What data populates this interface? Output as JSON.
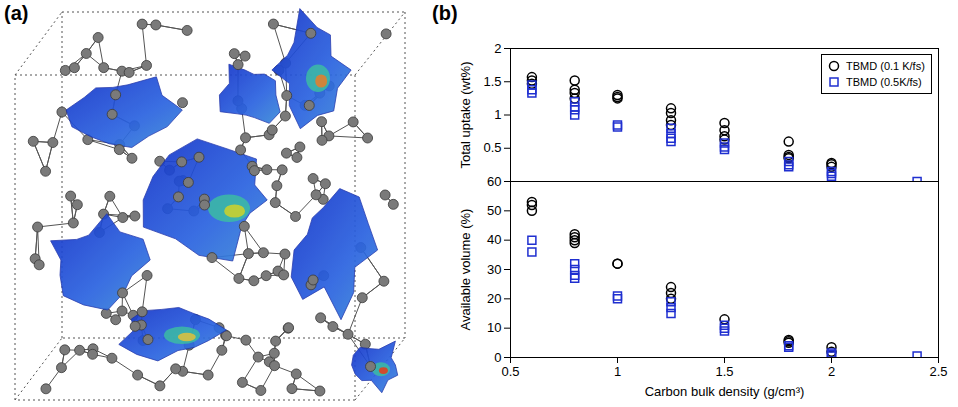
{
  "panel_labels": [
    "(a)",
    "(b)"
  ],
  "chart_data": [
    {
      "type": "scatter",
      "ylabel": "Total uptake (wt%)",
      "xlim": [
        0.5,
        2.5
      ],
      "ylim": [
        0,
        2
      ],
      "yticks": [
        0.5,
        1,
        1.5,
        2
      ],
      "tick_labels": "y",
      "legend": "top-right",
      "series": [
        {
          "name": "TBMD (0.1 K/fs)",
          "color": "#000000",
          "marker": "circle",
          "x": [
            0.6,
            0.6,
            0.6,
            0.8,
            0.8,
            0.8,
            0.8,
            1,
            1,
            1,
            1.25,
            1.25,
            1.25,
            1.25,
            1.5,
            1.5,
            1.5,
            1.5,
            1.8,
            1.8,
            1.8,
            1.8,
            2,
            2,
            2
          ],
          "values": [
            1.57,
            1.52,
            1.47,
            1.52,
            1.38,
            1.33,
            1.25,
            1.3,
            1.27,
            1.25,
            1.1,
            1.03,
            0.92,
            0.85,
            0.88,
            0.77,
            0.68,
            0.63,
            0.6,
            0.4,
            0.37,
            0.35,
            0.28,
            0.26,
            0.22
          ]
        },
        {
          "name": "TBMD (0.5K/fs)",
          "color": "#1f2fd0",
          "marker": "square",
          "x": [
            0.6,
            0.6,
            0.6,
            0.8,
            0.8,
            0.8,
            0.8,
            1,
            1,
            1.25,
            1.25,
            1.25,
            1.25,
            1.5,
            1.5,
            1.5,
            1.8,
            1.8,
            1.8,
            2,
            2,
            2,
            2.4
          ],
          "values": [
            1.45,
            1.38,
            1.33,
            1.2,
            1.12,
            1.08,
            1.0,
            0.85,
            0.82,
            0.8,
            0.72,
            0.65,
            0.6,
            0.58,
            0.52,
            0.48,
            0.3,
            0.25,
            0.22,
            0.15,
            0.12,
            0.08,
            0
          ]
        }
      ]
    },
    {
      "type": "scatter",
      "xlabel": "Carbon bulk density (g/cm³)",
      "ylabel": "Available volume (%)",
      "xlim": [
        0.5,
        2.5
      ],
      "xticks": [
        0.5,
        1,
        1.5,
        2,
        2.5
      ],
      "ylim": [
        0,
        60
      ],
      "yticks": [
        0,
        10,
        20,
        30,
        40,
        50,
        60
      ],
      "series": [
        {
          "name": "TBMD (0.1 K/fs)",
          "color": "#000000",
          "marker": "circle",
          "x": [
            0.6,
            0.6,
            0.6,
            0.8,
            0.8,
            0.8,
            0.8,
            1,
            1,
            1.25,
            1.25,
            1.25,
            1.5,
            1.8,
            1.8,
            1.8,
            2,
            2
          ],
          "values": [
            53,
            52,
            50,
            42,
            41,
            40,
            39,
            32,
            32,
            24,
            22,
            20,
            13,
            6,
            5.5,
            5,
            3.5,
            2
          ]
        },
        {
          "name": "TBMD (0.5K/fs)",
          "color": "#1f2fd0",
          "marker": "square",
          "x": [
            0.6,
            0.6,
            0.8,
            0.8,
            0.8,
            0.8,
            1,
            1,
            1.25,
            1.25,
            1.25,
            1.5,
            1.5,
            1.5,
            1.8,
            1.8,
            2,
            2,
            2,
            2.4
          ],
          "values": [
            40,
            36,
            32,
            30,
            28,
            27,
            21,
            20,
            19,
            17,
            15,
            11,
            10,
            9,
            4,
            3.5,
            1.5,
            1,
            0.5,
            0.5
          ]
        }
      ]
    }
  ]
}
